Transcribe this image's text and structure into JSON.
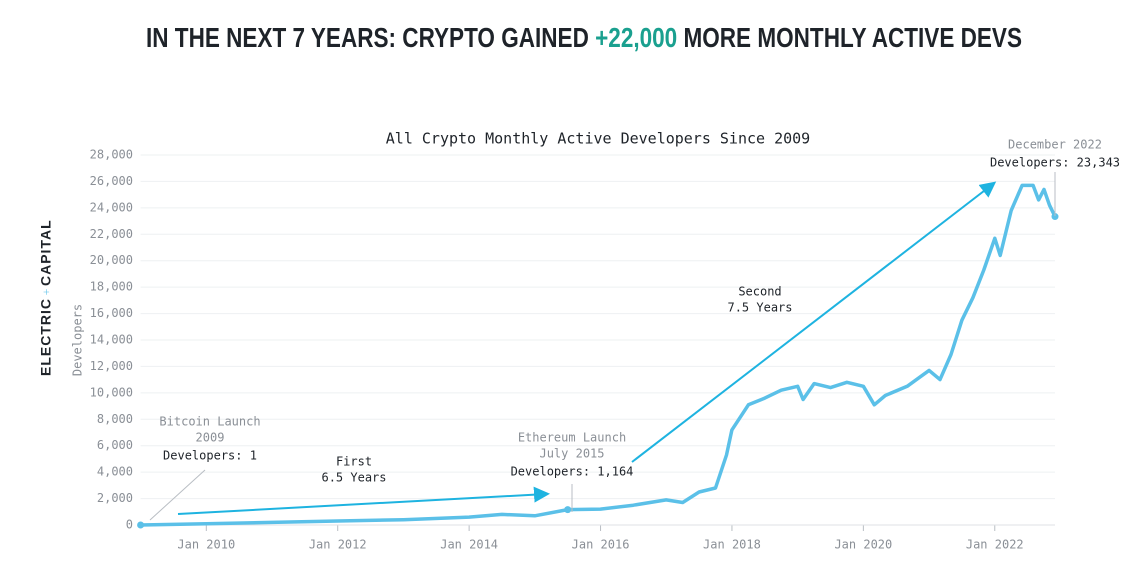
{
  "chart_data": {
    "type": "line",
    "title": [
      "IN THE NEXT 7 YEARS: CRYPTO GAINED ",
      "+22,000",
      " MORE MONTHLY ACTIVE DEVS"
    ],
    "title_highlight_color": "#1aa08f",
    "subtitle": "All Crypto Monthly Active Developers Since 2009",
    "ylabel": "Developers",
    "logo": [
      "ELECTRIC",
      "CAPITAL"
    ],
    "color": "#5bc0e8",
    "grid": true,
    "x": [
      "2009-01",
      "2010-01",
      "2011-01",
      "2012-01",
      "2013-01",
      "2014-01",
      "2014-07",
      "2015-01",
      "2015-07",
      "2016-01",
      "2016-07",
      "2017-01",
      "2017-04",
      "2017-07",
      "2017-10",
      "2017-12",
      "2018-01",
      "2018-04",
      "2018-07",
      "2018-10",
      "2019-01",
      "2019-02",
      "2019-04",
      "2019-07",
      "2019-10",
      "2020-01",
      "2020-03",
      "2020-05",
      "2020-09",
      "2021-01",
      "2021-03",
      "2021-05",
      "2021-07",
      "2021-09",
      "2021-11",
      "2022-01",
      "2022-02",
      "2022-04",
      "2022-06",
      "2022-08",
      "2022-09",
      "2022-10",
      "2022-11",
      "2022-12"
    ],
    "values": [
      1,
      100,
      200,
      300,
      400,
      600,
      800,
      700,
      1164,
      1200,
      1500,
      1900,
      1700,
      2500,
      2800,
      5300,
      7200,
      9100,
      9600,
      10200,
      10500,
      9500,
      10700,
      10400,
      10800,
      10500,
      9100,
      9800,
      10500,
      11700,
      11000,
      12900,
      15500,
      17200,
      19300,
      21700,
      20400,
      23800,
      25700,
      25700,
      24600,
      25400,
      24200,
      23343
    ],
    "xlim": [
      "2009-01",
      "2022-12"
    ],
    "xticks": [
      {
        "value": "2010-01",
        "label": "Jan 2010"
      },
      {
        "value": "2012-01",
        "label": "Jan 2012"
      },
      {
        "value": "2014-01",
        "label": "Jan 2014"
      },
      {
        "value": "2016-01",
        "label": "Jan 2016"
      },
      {
        "value": "2018-01",
        "label": "Jan 2018"
      },
      {
        "value": "2020-01",
        "label": "Jan 2020"
      },
      {
        "value": "2022-01",
        "label": "Jan 2022"
      }
    ],
    "ylim": [
      0,
      28000
    ],
    "yticks": [
      0,
      {
        "value": 2000,
        "label": "2,000"
      },
      {
        "value": 4000,
        "label": "4,000"
      },
      {
        "value": 6000,
        "label": "6,000"
      },
      {
        "value": 8000,
        "label": "8,000"
      },
      {
        "value": 10000,
        "label": "10,000"
      },
      {
        "value": 12000,
        "label": "12,000"
      },
      {
        "value": 14000,
        "label": "14,000"
      },
      {
        "value": 16000,
        "label": "16,000"
      },
      {
        "value": 18000,
        "label": "18,000"
      },
      {
        "value": 20000,
        "label": "20,000"
      },
      {
        "value": 22000,
        "label": "22,000"
      },
      {
        "value": 24000,
        "label": "24,000"
      },
      {
        "value": 26000,
        "label": "26,000"
      },
      {
        "value": 28000,
        "label": "28,000"
      }
    ],
    "annotations": {
      "bitcoin": [
        "Bitcoin Launch",
        "2009",
        "Developers: 1"
      ],
      "ethereum": [
        "Ethereum Launch",
        "July 2015",
        "Developers: 1,164"
      ],
      "latest": [
        "December 2022",
        "Developers: 23,343"
      ],
      "first": [
        "First",
        "6.5 Years"
      ],
      "second": [
        "Second",
        "7.5 Years"
      ]
    }
  }
}
